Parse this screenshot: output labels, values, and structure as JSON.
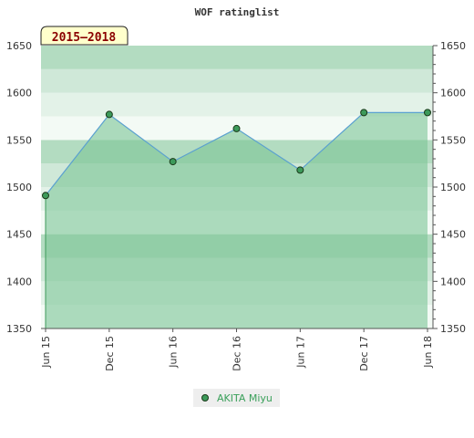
{
  "chart_data": {
    "type": "area",
    "title": "WOF ratinglist",
    "period_label": "2015—2018",
    "x": [
      "Jun 15",
      "Dec 15",
      "Jun 16",
      "Dec 16",
      "Jun 17",
      "Dec 17",
      "Jun 18"
    ],
    "series": [
      {
        "name": "AKITA Miyu",
        "values": [
          1491,
          1577,
          1527,
          1562,
          1518,
          1579,
          1579
        ]
      }
    ],
    "ylim": [
      1350,
      1650
    ],
    "yticks": [
      1350,
      1400,
      1450,
      1500,
      1550,
      1600,
      1650
    ],
    "grid": true,
    "legend": "bottom-center",
    "colors": {
      "line": "#5aa0d0",
      "area": "#7bc496",
      "marker": "#3c9a5a",
      "legend_text": "#3aa05a",
      "period_bg": "#ffffcc"
    }
  }
}
